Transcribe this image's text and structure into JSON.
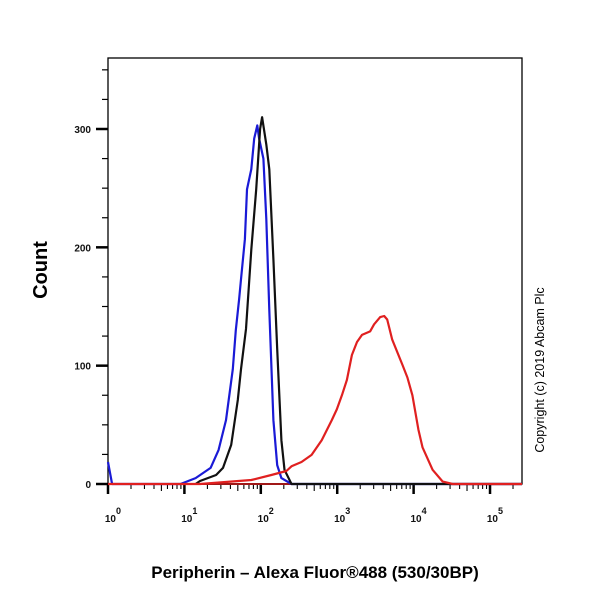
{
  "chart_data": {
    "type": "line",
    "title": "",
    "xlabel": "Peripherin – Alexa Fluor®488 (530/30BP)",
    "ylabel": "Count",
    "xscale": "log",
    "xlim": [
      1,
      262144
    ],
    "ylim": [
      0,
      360
    ],
    "x_ticks": [
      {
        "value": 1,
        "base": "10",
        "exp": "0"
      },
      {
        "value": 10,
        "base": "10",
        "exp": "1"
      },
      {
        "value": 100,
        "base": "10",
        "exp": "2"
      },
      {
        "value": 1000,
        "base": "10",
        "exp": "3"
      },
      {
        "value": 10000,
        "base": "10",
        "exp": "4"
      },
      {
        "value": 100000,
        "base": "10",
        "exp": "5"
      }
    ],
    "y_ticks": [
      {
        "value": 0,
        "label": "0"
      },
      {
        "value": 100,
        "label": "100"
      },
      {
        "value": 200,
        "label": "200"
      },
      {
        "value": 300,
        "label": "300"
      }
    ],
    "grid": false,
    "annotation": "Copyright (c) 2019 Abcam Plc",
    "series": [
      {
        "color": "#1a1ad6",
        "points": [
          [
            1,
            18.6
          ],
          [
            1.13,
            0
          ],
          [
            8.9,
            0
          ],
          [
            14,
            5
          ],
          [
            22,
            13.6
          ],
          [
            28,
            28.8
          ],
          [
            35,
            54
          ],
          [
            43,
            97
          ],
          [
            47,
            130
          ],
          [
            52,
            156
          ],
          [
            55,
            173
          ],
          [
            62,
            207
          ],
          [
            66,
            249
          ],
          [
            75,
            266
          ],
          [
            82,
            292
          ],
          [
            90,
            303
          ],
          [
            95,
            292
          ],
          [
            108,
            275
          ],
          [
            118,
            224
          ],
          [
            129,
            147
          ],
          [
            146,
            54
          ],
          [
            164,
            16
          ],
          [
            186,
            5
          ],
          [
            252,
            0
          ],
          [
            262144,
            0
          ]
        ]
      },
      {
        "color": "#111111",
        "points": [
          [
            14,
            0
          ],
          [
            16,
            2.5
          ],
          [
            26,
            7.6
          ],
          [
            32,
            13.6
          ],
          [
            41,
            33
          ],
          [
            50,
            71
          ],
          [
            55,
            97
          ],
          [
            64,
            131
          ],
          [
            75,
            198
          ],
          [
            87,
            249
          ],
          [
            98,
            300
          ],
          [
            104,
            310
          ],
          [
            118,
            287
          ],
          [
            129,
            266
          ],
          [
            146,
            190
          ],
          [
            164,
            114
          ],
          [
            186,
            37
          ],
          [
            204,
            12
          ],
          [
            252,
            0
          ],
          [
            262144,
            0
          ]
        ]
      },
      {
        "color": "#e02020",
        "points": [
          [
            1,
            0
          ],
          [
            16,
            0
          ],
          [
            75,
            3.4
          ],
          [
            137,
            7.6
          ],
          [
            216,
            11
          ],
          [
            252,
            15
          ],
          [
            341,
            18.6
          ],
          [
            462,
            24.6
          ],
          [
            626,
            37
          ],
          [
            849,
            54
          ],
          [
            988,
            63
          ],
          [
            1150,
            75
          ],
          [
            1339,
            88
          ],
          [
            1559,
            109
          ],
          [
            1815,
            120
          ],
          [
            2113,
            126
          ],
          [
            2692,
            129
          ],
          [
            3041,
            135
          ],
          [
            3650,
            141
          ],
          [
            4120,
            142
          ],
          [
            4510,
            139
          ],
          [
            5250,
            122
          ],
          [
            7110,
            101
          ],
          [
            8280,
            90
          ],
          [
            9640,
            75
          ],
          [
            11560,
            46
          ],
          [
            13060,
            31
          ],
          [
            17700,
            12
          ],
          [
            23990,
            2
          ],
          [
            32520,
            0
          ],
          [
            262144,
            0
          ]
        ]
      }
    ]
  }
}
